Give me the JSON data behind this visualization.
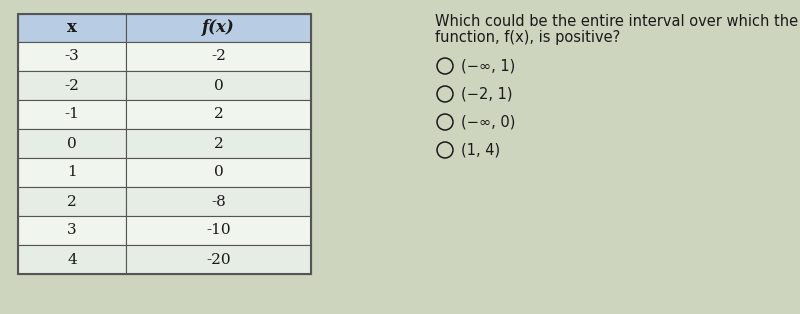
{
  "table_x": [
    "-3",
    "-2",
    "-1",
    "0",
    "1",
    "2",
    "3",
    "4"
  ],
  "table_fx": [
    "-2",
    "0",
    "2",
    "2",
    "0",
    "-8",
    "-10",
    "-20"
  ],
  "col_headers": [
    "x",
    "f(x)"
  ],
  "header_bg": "#b8cce4",
  "row_bg_even": "#f0f5ee",
  "row_bg_odd": "#e6ede4",
  "table_border": "#555555",
  "question_text_line1": "Which could be the entire interval over which the",
  "question_text_line2": "function, f(x), is positive?",
  "options": [
    "(−∞, 1)",
    "(−2, 1)",
    "(−∞, 0)",
    "(1, 4)"
  ],
  "bg_color": "#cdd5be",
  "text_color": "#1a1a1a",
  "question_fontsize": 10.5,
  "option_fontsize": 10.5,
  "table_fontsize": 11,
  "header_fontsize": 12
}
